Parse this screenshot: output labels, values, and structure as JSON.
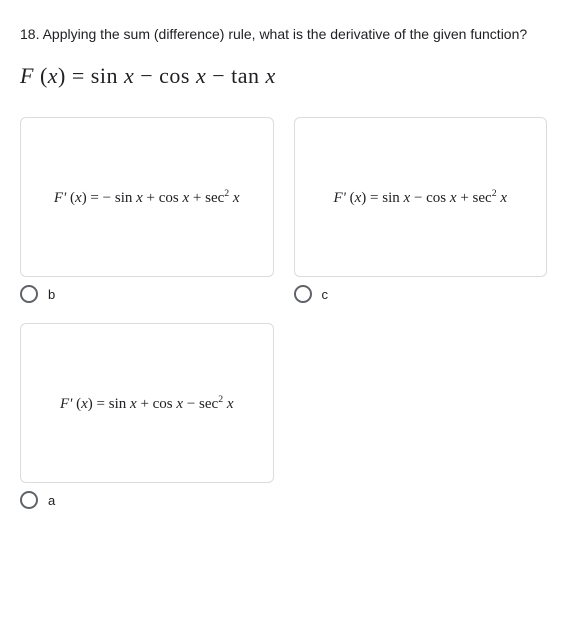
{
  "question": {
    "number": "18.",
    "text": "Applying the sum (difference) rule, what is the derivative of the given function?",
    "formula_html": "<span class='fn'>F</span> (<span class='fn'>x</span>) = sin <span class='fn'>x</span> − cos <span class='fn'>x</span> − tan <span class='fn'>x</span>"
  },
  "options": [
    {
      "id": "b",
      "label": "b",
      "math_html": "<span class='it'>F'</span> (<span class='it'>x</span>) = − sin <span class='it'>x</span> + cos <span class='it'>x</span> + sec<sup>2</sup> <span class='it'>x</span>"
    },
    {
      "id": "c",
      "label": "c",
      "math_html": "<span class='it'>F'</span> (<span class='it'>x</span>) = sin <span class='it'>x</span> − cos <span class='it'>x</span> + sec<sup>2</sup> <span class='it'>x</span>"
    },
    {
      "id": "a",
      "label": "a",
      "math_html": "<span class='it'>F'</span> (<span class='it'>x</span>) = sin <span class='it'>x</span> + cos <span class='it'>x</span> − sec<sup>2</sup> <span class='it'>x</span>"
    }
  ],
  "style": {
    "card_border_color": "#dadce0",
    "radio_border_color": "#5f6368",
    "text_color": "#202124",
    "background_color": "#ffffff"
  }
}
